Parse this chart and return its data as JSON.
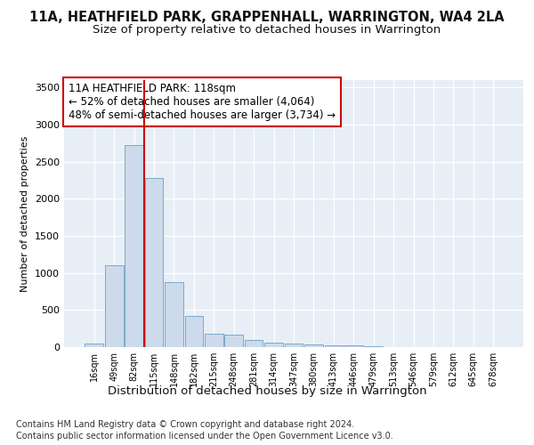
{
  "title": "11A, HEATHFIELD PARK, GRAPPENHALL, WARRINGTON, WA4 2LA",
  "subtitle": "Size of property relative to detached houses in Warrington",
  "xlabel": "Distribution of detached houses by size in Warrington",
  "ylabel": "Number of detached properties",
  "categories": [
    "16sqm",
    "49sqm",
    "82sqm",
    "115sqm",
    "148sqm",
    "182sqm",
    "215sqm",
    "248sqm",
    "281sqm",
    "314sqm",
    "347sqm",
    "380sqm",
    "413sqm",
    "446sqm",
    "479sqm",
    "513sqm",
    "546sqm",
    "579sqm",
    "612sqm",
    "645sqm",
    "678sqm"
  ],
  "values": [
    50,
    1100,
    2720,
    2280,
    880,
    415,
    175,
    165,
    95,
    65,
    50,
    40,
    30,
    20,
    8,
    5,
    3,
    2,
    2,
    2,
    1
  ],
  "bar_color": "#ccdaeb",
  "bar_edgecolor": "#7aaaca",
  "vline_x": 2.5,
  "vline_color": "#cc0000",
  "annotation_text": "11A HEATHFIELD PARK: 118sqm\n← 52% of detached houses are smaller (4,064)\n48% of semi-detached houses are larger (3,734) →",
  "annotation_box_color": "#ffffff",
  "annotation_box_edgecolor": "#cc0000",
  "ylim": [
    0,
    3600
  ],
  "yticks": [
    0,
    500,
    1000,
    1500,
    2000,
    2500,
    3000,
    3500
  ],
  "bg_color": "#ffffff",
  "plot_bg_color": "#e8eef6",
  "footer1": "Contains HM Land Registry data © Crown copyright and database right 2024.",
  "footer2": "Contains public sector information licensed under the Open Government Licence v3.0.",
  "title_fontsize": 10.5,
  "subtitle_fontsize": 9.5,
  "xlabel_fontsize": 9.5,
  "ylabel_fontsize": 8,
  "footer_fontsize": 7.0,
  "annotation_fontsize": 8.5
}
